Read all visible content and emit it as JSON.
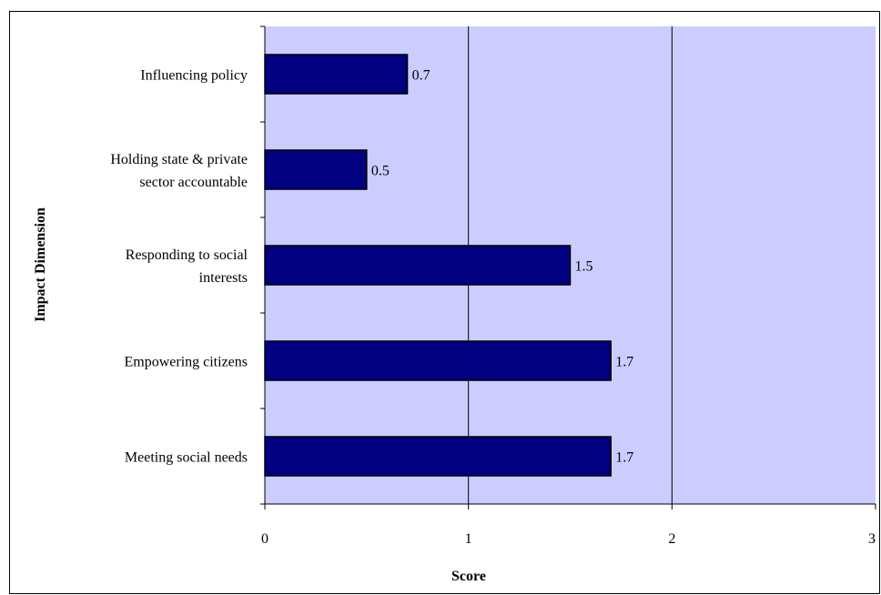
{
  "chart_data": {
    "type": "bar",
    "orientation": "horizontal",
    "categories": [
      [
        "Influencing policy"
      ],
      [
        "Holding state & private",
        "sector accountable"
      ],
      [
        "Responding to social",
        "interests"
      ],
      [
        "Empowering citizens"
      ],
      [
        "Meeting social needs"
      ]
    ],
    "values": [
      0.7,
      0.5,
      1.5,
      1.7,
      1.7
    ],
    "data_labels": [
      "0.7",
      "0.5",
      "1.5",
      "1.7",
      "1.7"
    ],
    "xlabel": "Score",
    "ylabel": "Impact Dimension",
    "xlim": [
      0,
      3
    ],
    "xticks": [
      0,
      1,
      2,
      3
    ],
    "xtick_labels": [
      "0",
      "1",
      "2",
      "3"
    ],
    "grid": "vertical major gridlines",
    "legend": "none",
    "colors": {
      "plot_background": "#ccccff",
      "bar_fill": "#000080",
      "bar_stroke": "#000000",
      "gridline": "#000000",
      "frame": "#000000"
    }
  }
}
